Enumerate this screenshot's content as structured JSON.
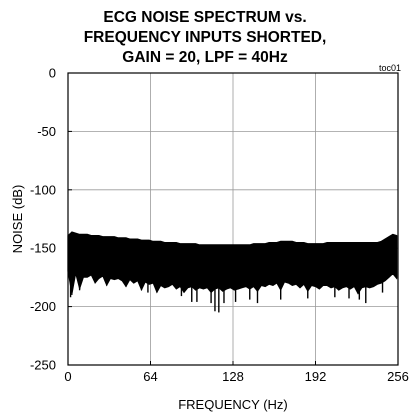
{
  "chart_data": {
    "type": "line",
    "title_lines": [
      "ECG NOISE SPECTRUM vs.",
      "FREQUENCY INPUTS SHORTED,",
      "GAIN = 20, LPF = 40Hz"
    ],
    "tag": "toc01",
    "xlabel": "FREQUENCY (Hz)",
    "ylabel": "NOISE (dB)",
    "xlim": [
      0,
      256
    ],
    "ylim": [
      -250,
      0
    ],
    "x_ticks": [
      0,
      64,
      128,
      192,
      256
    ],
    "y_ticks": [
      0,
      -50,
      -100,
      -150,
      -200,
      -250
    ],
    "x_tick_labels": [
      "0",
      "64",
      "128",
      "192",
      "256"
    ],
    "y_tick_labels": [
      "0",
      "-50",
      "-100",
      "-150",
      "-200",
      "-250"
    ],
    "grid": true,
    "legend": "none",
    "series": [
      {
        "style": "dense noise band, approximate envelope sampled every 3 Hz",
        "color": "#000000",
        "x": [
          0,
          3,
          6,
          9,
          12,
          15,
          18,
          21,
          24,
          27,
          30,
          33,
          36,
          39,
          42,
          45,
          48,
          51,
          54,
          57,
          60,
          63,
          66,
          69,
          72,
          75,
          78,
          81,
          84,
          87,
          90,
          93,
          96,
          99,
          102,
          105,
          108,
          111,
          114,
          117,
          120,
          123,
          126,
          129,
          132,
          135,
          138,
          141,
          144,
          147,
          150,
          153,
          156,
          159,
          162,
          165,
          168,
          171,
          174,
          177,
          180,
          183,
          186,
          189,
          192,
          195,
          198,
          201,
          204,
          207,
          210,
          213,
          216,
          219,
          222,
          225,
          228,
          231,
          234,
          237,
          240,
          243,
          246,
          249,
          252,
          255
        ],
        "upper": [
          -139,
          -136,
          -137,
          -138,
          -138,
          -138,
          -139,
          -139,
          -139,
          -140,
          -140,
          -140,
          -140,
          -141,
          -141,
          -141,
          -142,
          -142,
          -142,
          -143,
          -143,
          -143,
          -144,
          -144,
          -144,
          -145,
          -145,
          -145,
          -145,
          -146,
          -146,
          -146,
          -146,
          -146,
          -147,
          -147,
          -147,
          -147,
          -147,
          -147,
          -147,
          -147,
          -147,
          -147,
          -147,
          -147,
          -147,
          -147,
          -146,
          -146,
          -146,
          -146,
          -145,
          -145,
          -145,
          -144,
          -144,
          -144,
          -144,
          -145,
          -145,
          -145,
          -146,
          -146,
          -146,
          -146,
          -146,
          -145,
          -145,
          -145,
          -145,
          -145,
          -145,
          -145,
          -145,
          -145,
          -145,
          -145,
          -145,
          -145,
          -145,
          -144,
          -142,
          -140,
          -138,
          -139
        ],
        "lower": [
          -170,
          -190,
          -172,
          -185,
          -175,
          -175,
          -173,
          -180,
          -176,
          -174,
          -182,
          -176,
          -177,
          -176,
          -178,
          -183,
          -177,
          -180,
          -178,
          -186,
          -179,
          -181,
          -180,
          -188,
          -182,
          -184,
          -183,
          -181,
          -185,
          -183,
          -188,
          -184,
          -183,
          -186,
          -184,
          -185,
          -184,
          -188,
          -185,
          -184,
          -187,
          -185,
          -184,
          -186,
          -185,
          -184,
          -183,
          -185,
          -183,
          -187,
          -182,
          -183,
          -181,
          -182,
          -180,
          -186,
          -179,
          -180,
          -182,
          -181,
          -184,
          -181,
          -187,
          -182,
          -183,
          -185,
          -182,
          -182,
          -184,
          -183,
          -186,
          -184,
          -183,
          -185,
          -183,
          -189,
          -184,
          -183,
          -184,
          -183,
          -181,
          -180,
          -178,
          -175,
          -172,
          -176
        ],
        "dips": [
          {
            "x": 2,
            "y": -192
          },
          {
            "x": 9,
            "y": -186
          },
          {
            "x": 62,
            "y": -188
          },
          {
            "x": 88,
            "y": -191
          },
          {
            "x": 96,
            "y": -196
          },
          {
            "x": 100,
            "y": -196
          },
          {
            "x": 111,
            "y": -197
          },
          {
            "x": 114,
            "y": -204
          },
          {
            "x": 117,
            "y": -205
          },
          {
            "x": 121,
            "y": -197
          },
          {
            "x": 130,
            "y": -196
          },
          {
            "x": 141,
            "y": -194
          },
          {
            "x": 147,
            "y": -197
          },
          {
            "x": 165,
            "y": -194
          },
          {
            "x": 186,
            "y": -193
          },
          {
            "x": 207,
            "y": -192
          },
          {
            "x": 218,
            "y": -193
          },
          {
            "x": 226,
            "y": -194
          },
          {
            "x": 231,
            "y": -197
          },
          {
            "x": 244,
            "y": -188
          }
        ]
      }
    ]
  }
}
